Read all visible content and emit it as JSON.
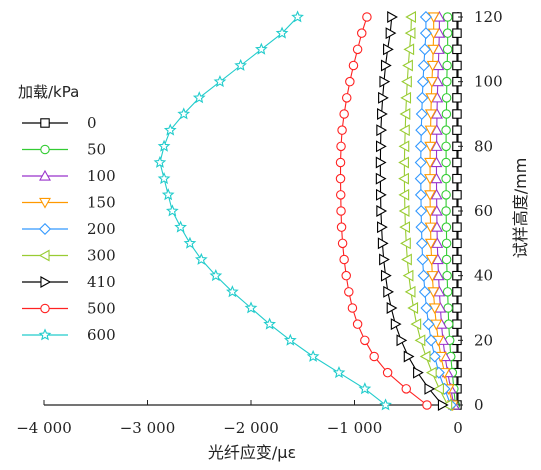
{
  "chart_data": {
    "type": "line",
    "xlabel": "光纤应变/με",
    "ylabel": "试样高度/mm",
    "xlim": [
      -4000,
      0
    ],
    "ylim": [
      0,
      120
    ],
    "x_ticks": [
      "−4 000",
      "−3 000",
      "−2 000",
      "−1 000",
      "0"
    ],
    "y_ticks": [
      "0",
      "20",
      "40",
      "60",
      "80",
      "100",
      "120"
    ],
    "y_positions": [
      0,
      5,
      10,
      15,
      20,
      25,
      30,
      35,
      40,
      45,
      50,
      55,
      60,
      65,
      70,
      75,
      80,
      85,
      90,
      95,
      100,
      105,
      110,
      115,
      120
    ],
    "legend_title": "加载/kPa",
    "legend_position": "left",
    "series": [
      {
        "name": "0",
        "color": "#000000",
        "marker": "square",
        "x": [
          -10,
          -10,
          -10,
          -10,
          -10,
          -10,
          -10,
          -10,
          -10,
          -10,
          -10,
          -10,
          -10,
          -10,
          -10,
          -10,
          -10,
          -10,
          -10,
          -10,
          -10,
          -10,
          -10,
          -10,
          -10
        ]
      },
      {
        "name": "50",
        "color": "#33cc33",
        "marker": "circle",
        "x": [
          -25,
          -40,
          -55,
          -70,
          -80,
          -90,
          -95,
          -100,
          -105,
          -110,
          -110,
          -112,
          -115,
          -115,
          -115,
          -115,
          -115,
          -115,
          -112,
          -110,
          -108,
          -105,
          -100,
          -100,
          -100
        ]
      },
      {
        "name": "100",
        "color": "#9933cc",
        "marker": "triangle-up",
        "x": [
          -40,
          -70,
          -100,
          -125,
          -145,
          -160,
          -170,
          -180,
          -188,
          -195,
          -200,
          -203,
          -205,
          -207,
          -208,
          -208,
          -207,
          -205,
          -203,
          -200,
          -195,
          -190,
          -185,
          -180,
          -180
        ]
      },
      {
        "name": "150",
        "color": "#ff9900",
        "marker": "triangle-down",
        "x": [
          -50,
          -90,
          -130,
          -165,
          -190,
          -210,
          -225,
          -238,
          -248,
          -255,
          -262,
          -265,
          -268,
          -270,
          -270,
          -270,
          -268,
          -265,
          -262,
          -258,
          -252,
          -245,
          -240,
          -235,
          -235
        ]
      },
      {
        "name": "200",
        "color": "#3399ff",
        "marker": "diamond",
        "x": [
          -70,
          -130,
          -185,
          -225,
          -260,
          -285,
          -305,
          -320,
          -332,
          -342,
          -348,
          -353,
          -356,
          -358,
          -360,
          -360,
          -358,
          -355,
          -350,
          -345,
          -338,
          -330,
          -320,
          -310,
          -310
        ]
      },
      {
        "name": "300",
        "color": "#99cc33",
        "marker": "triangle-left",
        "x": [
          -100,
          -180,
          -250,
          -310,
          -360,
          -400,
          -430,
          -455,
          -475,
          -490,
          -500,
          -508,
          -513,
          -516,
          -518,
          -518,
          -515,
          -510,
          -505,
          -498,
          -490,
          -480,
          -468,
          -455,
          -450
        ]
      },
      {
        "name": "410",
        "color": "#000000",
        "marker": "triangle-right",
        "x": [
          -150,
          -280,
          -390,
          -480,
          -550,
          -605,
          -645,
          -678,
          -700,
          -718,
          -730,
          -738,
          -745,
          -748,
          -750,
          -750,
          -748,
          -745,
          -738,
          -728,
          -715,
          -700,
          -680,
          -655,
          -640
        ]
      },
      {
        "name": "500",
        "color": "#ff2222",
        "marker": "circle",
        "x": [
          -300,
          -500,
          -680,
          -810,
          -900,
          -970,
          -1020,
          -1055,
          -1080,
          -1100,
          -1115,
          -1125,
          -1130,
          -1133,
          -1135,
          -1135,
          -1130,
          -1120,
          -1100,
          -1075,
          -1045,
          -1010,
          -970,
          -930,
          -880
        ]
      },
      {
        "name": "600",
        "color": "#22cccc",
        "marker": "star",
        "x": [
          -700,
          -900,
          -1150,
          -1400,
          -1620,
          -1820,
          -2000,
          -2180,
          -2340,
          -2480,
          -2590,
          -2680,
          -2760,
          -2800,
          -2840,
          -2880,
          -2840,
          -2780,
          -2650,
          -2500,
          -2300,
          -2100,
          -1900,
          -1700,
          -1550
        ]
      }
    ]
  }
}
